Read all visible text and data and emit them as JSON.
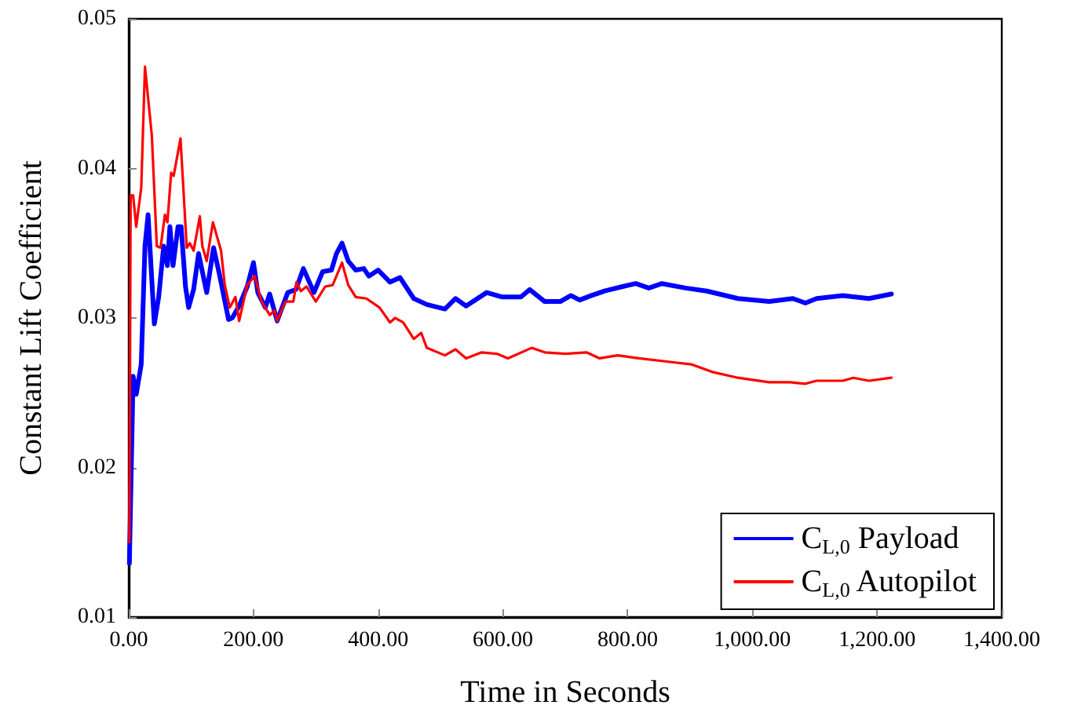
{
  "chart_data": {
    "type": "line",
    "xlabel": "Time in Seconds",
    "ylabel": "Constant Lift Coefficient",
    "xlim": [
      0,
      1400
    ],
    "ylim": [
      0.01,
      0.05
    ],
    "xticks": [
      {
        "value": 0,
        "label": "0.00"
      },
      {
        "value": 200,
        "label": "200.00"
      },
      {
        "value": 400,
        "label": "400.00"
      },
      {
        "value": 600,
        "label": "600.00"
      },
      {
        "value": 800,
        "label": "800.00"
      },
      {
        "value": 1000,
        "label": "1,000.00"
      },
      {
        "value": 1200,
        "label": "1,200.00"
      },
      {
        "value": 1400,
        "label": "1,400.00"
      }
    ],
    "yticks": [
      0.01,
      0.02,
      0.03,
      0.04,
      0.05
    ],
    "grid": false,
    "legend": "bottom right",
    "marker": "none",
    "line_style": "solid",
    "series": [
      {
        "name": "C$_{L,0}$ Payload",
        "color": "#0000ff",
        "x": [
          1,
          7,
          12,
          20,
          26,
          31,
          41,
          48,
          56,
          62,
          66,
          71,
          79,
          84,
          91,
          96,
          104,
          112,
          125,
          136,
          146,
          160,
          166,
          177,
          190,
          200,
          207,
          219,
          226,
          238,
          255,
          268,
          280,
          297,
          311,
          325,
          333,
          342,
          352,
          364,
          377,
          385,
          400,
          419,
          435,
          457,
          478,
          507,
          524,
          541,
          574,
          599,
          629,
          643,
          667,
          692,
          709,
          723,
          742,
          763,
          792,
          813,
          834,
          855,
          893,
          927,
          977,
          1027,
          1065,
          1085,
          1103,
          1145,
          1187,
          1223
        ],
        "values": [
          0.0136,
          0.0261,
          0.0249,
          0.0269,
          0.0348,
          0.0369,
          0.0296,
          0.0314,
          0.0348,
          0.0335,
          0.0361,
          0.0335,
          0.0361,
          0.0361,
          0.0321,
          0.0307,
          0.0319,
          0.0343,
          0.0317,
          0.0347,
          0.0328,
          0.0299,
          0.03,
          0.0308,
          0.0321,
          0.0337,
          0.0317,
          0.0307,
          0.0316,
          0.0298,
          0.0317,
          0.0319,
          0.0333,
          0.0317,
          0.0331,
          0.0332,
          0.0343,
          0.035,
          0.0338,
          0.0332,
          0.0333,
          0.0328,
          0.0332,
          0.0324,
          0.0327,
          0.0313,
          0.0309,
          0.0306,
          0.0313,
          0.0308,
          0.0317,
          0.0314,
          0.0314,
          0.0319,
          0.0311,
          0.0311,
          0.0315,
          0.0312,
          0.0315,
          0.0318,
          0.0321,
          0.0323,
          0.032,
          0.0323,
          0.032,
          0.0318,
          0.0313,
          0.0311,
          0.0313,
          0.031,
          0.0313,
          0.0315,
          0.0313,
          0.0316
        ]
      },
      {
        "name": "C$_{L,0}$ Autopilot",
        "color": "#ff0000",
        "x": [
          1,
          3,
          7,
          12,
          20,
          26,
          37,
          45,
          51,
          58,
          62,
          68,
          72,
          83,
          93,
          98,
          104,
          114,
          118,
          125,
          135,
          148,
          154,
          162,
          171,
          177,
          190,
          202,
          213,
          226,
          234,
          238,
          251,
          264,
          269,
          276,
          285,
          300,
          315,
          327,
          342,
          352,
          364,
          381,
          402,
          419,
          427,
          440,
          457,
          469,
          478,
          507,
          524,
          541,
          566,
          591,
          608,
          646,
          667,
          700,
          734,
          755,
          784,
          818,
          860,
          902,
          935,
          977,
          1027,
          1061,
          1085,
          1103,
          1145,
          1162,
          1187,
          1223
        ],
        "values": [
          0.015,
          0.0382,
          0.0382,
          0.0361,
          0.0387,
          0.0468,
          0.0422,
          0.0348,
          0.0347,
          0.0369,
          0.0364,
          0.0397,
          0.0395,
          0.042,
          0.0347,
          0.035,
          0.0345,
          0.0368,
          0.0348,
          0.0338,
          0.0364,
          0.0345,
          0.0322,
          0.0307,
          0.0314,
          0.0298,
          0.0322,
          0.0328,
          0.0311,
          0.0302,
          0.0305,
          0.0298,
          0.0311,
          0.0311,
          0.0324,
          0.0318,
          0.0321,
          0.0311,
          0.0321,
          0.0322,
          0.0337,
          0.0322,
          0.0314,
          0.0313,
          0.0307,
          0.0297,
          0.03,
          0.0297,
          0.0286,
          0.029,
          0.028,
          0.0275,
          0.0279,
          0.0273,
          0.0277,
          0.0276,
          0.0273,
          0.028,
          0.0277,
          0.0276,
          0.0277,
          0.0273,
          0.0275,
          0.0273,
          0.0271,
          0.0269,
          0.0264,
          0.026,
          0.0257,
          0.0257,
          0.0256,
          0.0258,
          0.0258,
          0.026,
          0.0258,
          0.026
        ]
      }
    ]
  }
}
